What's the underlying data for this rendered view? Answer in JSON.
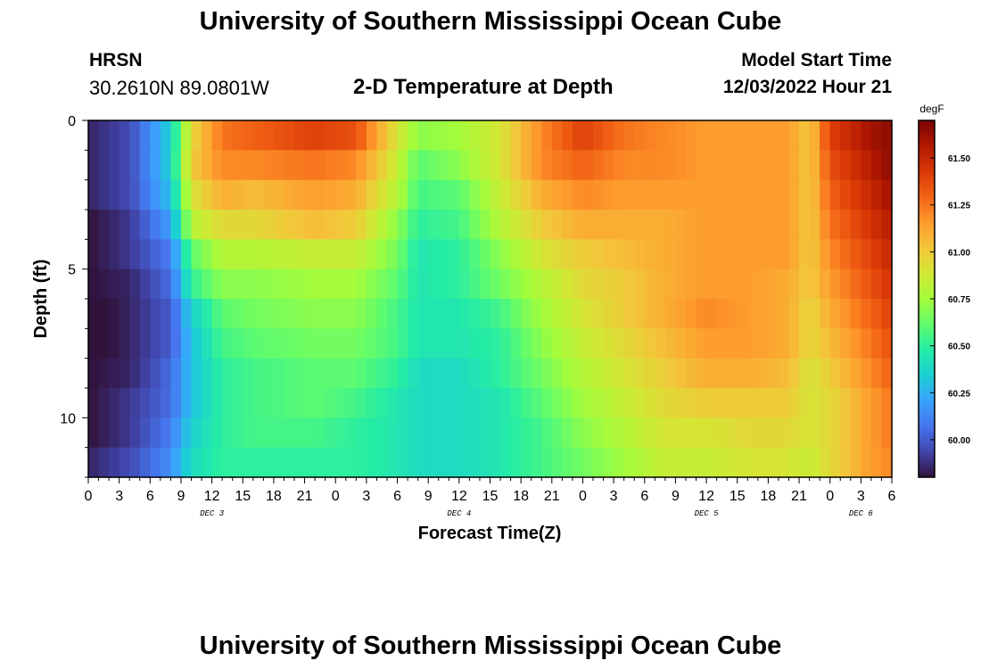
{
  "header": {
    "title": "University of Southern Mississippi Ocean Cube",
    "footer_title": "University of Southern Mississippi Ocean Cube",
    "station": "HRSN",
    "coordinates": "30.2610N  89.0801W",
    "plot_title": "2-D Temperature at Depth",
    "model_start_label": "Model Start Time",
    "model_start_value": "12/03/2022 Hour 21"
  },
  "chart_data": {
    "type": "heatmap",
    "title": "2-D Temperature at Depth",
    "xlabel": "Forecast Time(Z)",
    "ylabel": "Depth (ft)",
    "x_tick_labels": [
      "0",
      "3",
      "6",
      "9",
      "12",
      "15",
      "18",
      "21",
      "0",
      "3",
      "6",
      "9",
      "12",
      "15",
      "18",
      "21",
      "0",
      "3",
      "6",
      "9",
      "12",
      "15",
      "18",
      "21",
      "0",
      "3",
      "6"
    ],
    "x_range_hours": [
      0,
      78
    ],
    "day_labels": [
      {
        "label": "DEC 3",
        "hour": 12
      },
      {
        "label": "DEC 4",
        "hour": 36
      },
      {
        "label": "DEC 5",
        "hour": 60
      },
      {
        "label": "DEC 6",
        "hour": 75
      }
    ],
    "y_range": [
      0,
      12
    ],
    "y_tick_labels": [
      {
        "value": 0,
        "label": "0"
      },
      {
        "value": 5,
        "label": "5"
      },
      {
        "value": 10,
        "label": "10"
      }
    ],
    "colorbar": {
      "unit": "degF",
      "min": 59.8,
      "max": 61.7,
      "tick_values": [
        60.0,
        60.25,
        60.5,
        60.75,
        61.0,
        61.25,
        61.5
      ],
      "tick_labels": [
        "60.00",
        "60.25",
        "60.50",
        "60.75",
        "61.00",
        "61.25",
        "61.50"
      ],
      "colors": [
        "#30123b",
        "#4145ab",
        "#4675ed",
        "#39a2fc",
        "#1bcfd4",
        "#24eca6",
        "#61fc6c",
        "#a4fc3b",
        "#d1e834",
        "#f3c63a",
        "#fe9b2d",
        "#f36315",
        "#d93806",
        "#b11901",
        "#7a0402"
      ]
    },
    "depth_levels_ft": [
      0.5,
      1.5,
      2.5,
      3.5,
      4.5,
      5.5,
      6.5,
      7.5,
      8.5,
      9.5,
      10.5,
      11.5
    ],
    "time_knots_hours": [
      0,
      4,
      8,
      10,
      13,
      16,
      22,
      26,
      30,
      32,
      36,
      40,
      44,
      48,
      52,
      56,
      60,
      64,
      68,
      70,
      72,
      74,
      76,
      78
    ],
    "temperature_degF": [
      [
        59.85,
        59.95,
        60.35,
        60.95,
        61.25,
        61.3,
        61.4,
        61.35,
        60.9,
        60.7,
        60.75,
        60.9,
        61.2,
        61.4,
        61.25,
        61.2,
        61.15,
        61.15,
        61.15,
        61.0,
        61.4,
        61.5,
        61.6,
        61.65
      ],
      [
        59.85,
        59.95,
        60.35,
        61.0,
        61.2,
        61.2,
        61.25,
        61.2,
        60.85,
        60.6,
        60.7,
        60.9,
        61.2,
        61.3,
        61.2,
        61.2,
        61.15,
        61.15,
        61.15,
        61.0,
        61.35,
        61.45,
        61.55,
        61.65
      ],
      [
        59.85,
        59.95,
        60.3,
        60.9,
        61.1,
        61.05,
        61.15,
        61.1,
        60.8,
        60.55,
        60.6,
        60.85,
        61.1,
        61.2,
        61.15,
        61.15,
        61.15,
        61.15,
        61.15,
        61.0,
        61.3,
        61.4,
        61.5,
        61.6
      ],
      [
        59.8,
        59.9,
        60.2,
        60.8,
        60.95,
        60.95,
        61.05,
        61.0,
        60.7,
        60.5,
        60.55,
        60.8,
        61.0,
        61.1,
        61.1,
        61.1,
        61.15,
        61.15,
        61.15,
        61.0,
        61.25,
        61.35,
        61.45,
        61.55
      ],
      [
        59.8,
        59.9,
        60.1,
        60.6,
        60.8,
        60.8,
        60.85,
        60.85,
        60.65,
        60.45,
        60.5,
        60.7,
        60.9,
        61.0,
        61.05,
        61.1,
        61.15,
        61.15,
        61.15,
        61.0,
        61.2,
        61.3,
        61.4,
        61.5
      ],
      [
        59.8,
        59.85,
        60.05,
        60.5,
        60.7,
        60.7,
        60.75,
        60.75,
        60.6,
        60.45,
        60.5,
        60.65,
        60.8,
        60.95,
        61.0,
        61.1,
        61.15,
        61.15,
        61.1,
        61.0,
        61.15,
        61.25,
        61.35,
        61.45
      ],
      [
        59.75,
        59.85,
        60.0,
        60.35,
        60.6,
        60.65,
        60.7,
        60.7,
        60.55,
        60.45,
        60.45,
        60.55,
        60.75,
        60.9,
        61.0,
        61.1,
        61.2,
        61.15,
        61.1,
        60.95,
        61.1,
        61.2,
        61.3,
        61.4
      ],
      [
        59.75,
        59.85,
        60.0,
        60.3,
        60.55,
        60.6,
        60.65,
        60.65,
        60.55,
        60.45,
        60.45,
        60.5,
        60.7,
        60.85,
        60.95,
        61.05,
        61.15,
        61.15,
        61.1,
        60.95,
        61.05,
        61.15,
        61.25,
        61.35
      ],
      [
        59.8,
        59.85,
        60.05,
        60.3,
        60.5,
        60.55,
        60.6,
        60.6,
        60.5,
        60.4,
        60.4,
        60.5,
        60.65,
        60.8,
        60.9,
        61.0,
        61.1,
        61.1,
        61.05,
        60.9,
        61.0,
        61.1,
        61.2,
        61.3
      ],
      [
        59.8,
        59.9,
        60.05,
        60.3,
        60.5,
        60.55,
        60.6,
        60.55,
        60.45,
        60.4,
        60.4,
        60.45,
        60.6,
        60.75,
        60.85,
        60.95,
        61.0,
        61.0,
        61.0,
        60.9,
        60.95,
        61.05,
        61.15,
        61.25
      ],
      [
        59.8,
        59.9,
        60.1,
        60.35,
        60.5,
        60.55,
        60.55,
        60.5,
        60.45,
        60.4,
        60.4,
        60.45,
        60.55,
        60.7,
        60.8,
        60.9,
        60.9,
        60.95,
        60.95,
        60.9,
        60.95,
        61.05,
        61.15,
        61.25
      ],
      [
        59.85,
        59.95,
        60.15,
        60.4,
        60.5,
        60.5,
        60.5,
        60.5,
        60.45,
        60.4,
        60.4,
        60.45,
        60.55,
        60.65,
        60.75,
        60.85,
        60.85,
        60.9,
        60.9,
        60.85,
        60.95,
        61.05,
        61.15,
        61.2
      ]
    ]
  }
}
